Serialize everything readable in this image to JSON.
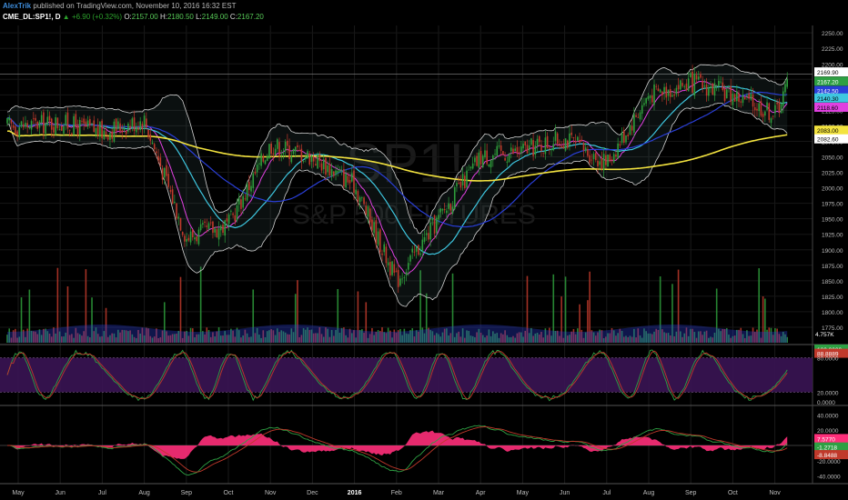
{
  "header": {
    "author": "AlexTrik",
    "published": "published on TradingView.com, November 10, 2016 16:32 EST",
    "symbol": "CME_DL:SP1!, D",
    "change": "▲ +6.90 (+0.32%)",
    "open_label": "O:",
    "open": "2157.00",
    "high_label": "H:",
    "high": "2180.50",
    "low_label": "L:",
    "low": "2149.00",
    "close_label": "C:",
    "close": "2167.20"
  },
  "watermark": {
    "ticker": "SP1!",
    "name": "S&P 500 FUTURES"
  },
  "colors": {
    "background": "#000000",
    "candle_up": "#2e9e3b",
    "candle_down": "#c0392b",
    "ma_fast": "#e040e0",
    "ma_mid": "#3ec7e0",
    "ma_slow": "#2a3fd8",
    "ma_long": "#f3e33f",
    "bands": "#d0d0d0",
    "stoch_fill": "#3a1454",
    "macd_hist": "#ff2f7a"
  },
  "chart_data": [
    {
      "type": "candlestick",
      "panel": "price",
      "x_ticks": [
        "May",
        "Jun",
        "Jul",
        "Aug",
        "Sep",
        "Oct",
        "Nov",
        "Dec",
        "2016",
        "Feb",
        "Mar",
        "Apr",
        "May",
        "Jun",
        "Jul",
        "Aug",
        "Sep",
        "Oct",
        "Nov"
      ],
      "ylim": [
        1750,
        2262
      ],
      "y_ticks": [
        2250,
        2225,
        2200,
        2175,
        2150,
        2125,
        2100,
        2075,
        2050,
        2025,
        2000,
        1975,
        1950,
        1925,
        1900,
        1875,
        1850,
        1825,
        1800,
        1775
      ],
      "anchors": {
        "month_index": [
          0,
          1,
          2,
          3,
          4,
          5,
          6,
          7,
          8,
          9,
          10,
          11,
          12,
          13,
          14,
          15,
          16,
          17,
          18,
          18.3
        ],
        "close": [
          2100,
          2105,
          2090,
          2110,
          1920,
          1940,
          2070,
          2050,
          2005,
          1850,
          1950,
          2050,
          2060,
          2080,
          2040,
          2150,
          2170,
          2150,
          2120,
          2167
        ]
      },
      "last_value_labels": [
        {
          "value": "2169.90",
          "color": "#ffffff",
          "text_color": "#000000"
        },
        {
          "value": "2167.20",
          "color": "#2ea043",
          "text_color": "#ffffff"
        },
        {
          "value": "2142.50",
          "color": "#2a3fd8",
          "text_color": "#ffffff"
        },
        {
          "value": "2140.30",
          "color": "#3ec7e0",
          "text_color": "#000000"
        },
        {
          "value": "2118.60",
          "color": "#e040e0",
          "text_color": "#000000"
        },
        {
          "value": "2083.00",
          "color": "#f3e33f",
          "text_color": "#000000"
        },
        {
          "value": "2082.60",
          "color": "#ffffff",
          "text_color": "#000000"
        }
      ],
      "volume": {
        "last_label": "4.757K",
        "color": "#1f5f9f"
      }
    },
    {
      "type": "line",
      "panel": "stochastic",
      "ylim": [
        0,
        100
      ],
      "bands": [
        20,
        80
      ],
      "y_ticks": [
        100,
        80,
        20,
        0
      ],
      "last_value_labels": [
        {
          "value": "100.0000",
          "color": "#2ea043",
          "text_color": "#ffffff"
        },
        {
          "value": "88.8889",
          "color": "#c0392b",
          "text_color": "#ffffff"
        }
      ],
      "tick_labels": [
        "80.0000",
        "20.0000",
        "0.0000"
      ]
    },
    {
      "type": "line",
      "panel": "macd",
      "ylim": [
        -50,
        50
      ],
      "y_ticks": [
        40,
        20,
        -20,
        -40
      ],
      "tick_labels": [
        "40.0000",
        "20.0000",
        "-20.0000",
        "-40.0000"
      ],
      "last_value_labels": [
        {
          "value": "7.5770",
          "color": "#ff2f7a",
          "text_color": "#ffffff"
        },
        {
          "value": "-1.2718",
          "color": "#2ea043",
          "text_color": "#ffffff"
        },
        {
          "value": "-8.8488",
          "color": "#c0392b",
          "text_color": "#ffffff"
        }
      ]
    }
  ]
}
